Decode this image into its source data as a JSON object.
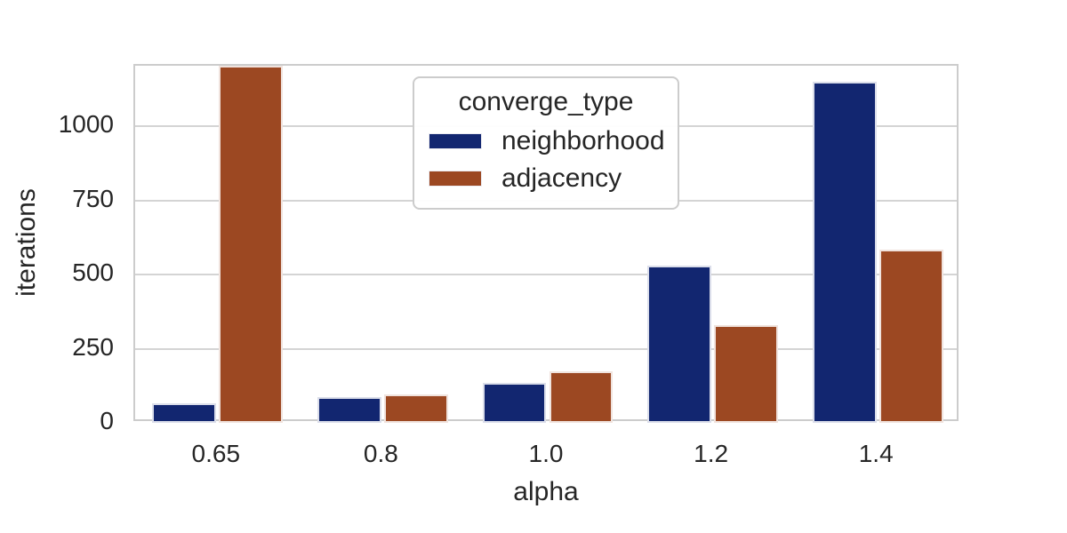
{
  "chart_data": {
    "type": "bar",
    "title": "",
    "xlabel": "alpha",
    "ylabel": "iterations",
    "categories": [
      "0.65",
      "0.8",
      "1.0",
      "1.2",
      "1.4"
    ],
    "series": [
      {
        "name": "neighborhood",
        "color": "#122670",
        "values": [
          65,
          88,
          135,
          530,
          1150
        ]
      },
      {
        "name": "adjacency",
        "color": "#9c4822",
        "values": [
          1205,
          95,
          175,
          330,
          585
        ]
      }
    ],
    "ylim": [
      0,
      1205
    ],
    "yticks": [
      0,
      250,
      500,
      750,
      1000
    ],
    "grid": "horizontal",
    "legend": {
      "title": "converge_type",
      "position": "upper center"
    },
    "note": "adjacency bar at alpha=0.65 reaches the top of the plot area (~1205, possibly clipped)",
    "style": {
      "background": "#ffffff",
      "text_color": "#262626",
      "grid_color": "#d4d4d4",
      "spine_color": "#cccccc"
    }
  }
}
